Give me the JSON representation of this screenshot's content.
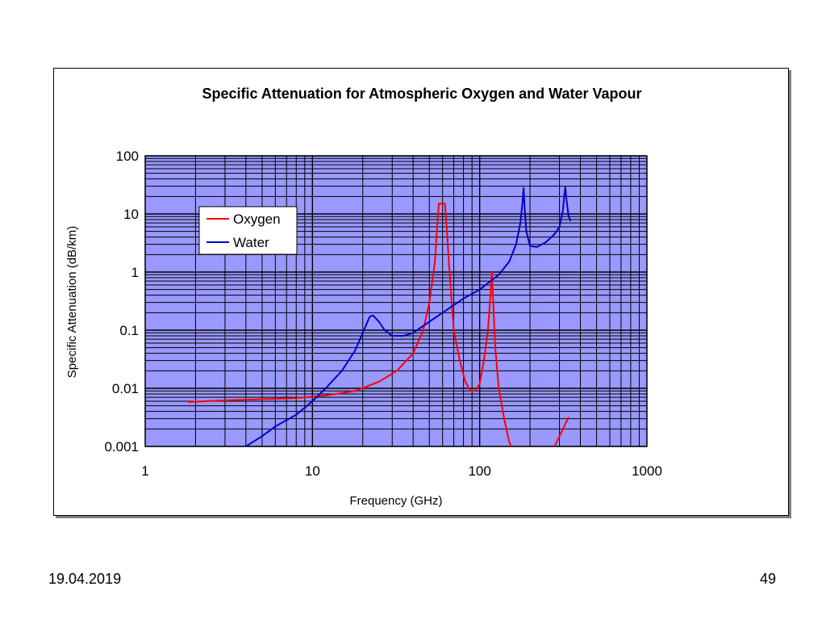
{
  "slide": {
    "date": "19.04.2019",
    "page_number": "49"
  },
  "chart_data": {
    "type": "line",
    "title": "Specific Attenuation for Atmospheric Oxygen and Water Vapour",
    "xlabel": "Frequency (GHz)",
    "ylabel": "Specific Attenuation (dB/km)",
    "x_scale": "log",
    "y_scale": "log",
    "xlim": [
      1,
      1000
    ],
    "ylim": [
      0.001,
      100
    ],
    "x_ticks": [
      "1",
      "10",
      "100",
      "1000"
    ],
    "y_ticks": [
      "0.001",
      "0.01",
      "0.1",
      "1",
      "10",
      "100"
    ],
    "grid": true,
    "plot_background": "#9999ff",
    "legend_position": "upper-left",
    "series": [
      {
        "name": "Oxygen",
        "color": "#ff0000",
        "segments": [
          [
            [
              1.8,
              0.0058
            ],
            [
              3,
              0.0062
            ],
            [
              5,
              0.0065
            ],
            [
              8,
              0.0068
            ],
            [
              12,
              0.0075
            ],
            [
              18,
              0.009
            ],
            [
              25,
              0.013
            ],
            [
              32,
              0.02
            ],
            [
              40,
              0.04
            ],
            [
              46,
              0.1
            ],
            [
              50,
              0.3
            ],
            [
              54,
              1.5
            ],
            [
              56,
              8
            ],
            [
              57,
              15
            ],
            [
              62,
              15
            ],
            [
              63,
              8
            ],
            [
              66,
              1
            ],
            [
              70,
              0.1
            ],
            [
              76,
              0.03
            ],
            [
              82,
              0.013
            ],
            [
              88,
              0.009
            ],
            [
              94,
              0.009
            ],
            [
              100,
              0.012
            ],
            [
              106,
              0.03
            ],
            [
              112,
              0.1
            ],
            [
              116,
              0.4
            ],
            [
              118,
              1
            ],
            [
              120,
              0.4
            ],
            [
              124,
              0.05
            ],
            [
              130,
              0.01
            ],
            [
              140,
              0.003
            ],
            [
              150,
              0.0012
            ],
            [
              155,
              0.001
            ]
          ],
          [
            [
              280,
              0.001
            ],
            [
              300,
              0.0015
            ],
            [
              320,
              0.0022
            ],
            [
              340,
              0.0032
            ]
          ]
        ]
      },
      {
        "name": "Water",
        "color": "#0000cc",
        "segments": [
          [
            [
              4,
              0.001
            ],
            [
              5,
              0.0015
            ],
            [
              6,
              0.0022
            ],
            [
              8,
              0.0035
            ],
            [
              10,
              0.006
            ],
            [
              12,
              0.01
            ],
            [
              15,
              0.02
            ],
            [
              18,
              0.045
            ],
            [
              20,
              0.09
            ],
            [
              22,
              0.17
            ],
            [
              23,
              0.18
            ],
            [
              25,
              0.14
            ],
            [
              27,
              0.1
            ],
            [
              30,
              0.08
            ],
            [
              35,
              0.08
            ],
            [
              40,
              0.09
            ],
            [
              50,
              0.14
            ],
            [
              60,
              0.2
            ],
            [
              80,
              0.35
            ],
            [
              100,
              0.5
            ],
            [
              130,
              0.9
            ],
            [
              150,
              1.5
            ],
            [
              165,
              3
            ],
            [
              175,
              7
            ],
            [
              180,
              15
            ],
            [
              183,
              28
            ],
            [
              186,
              12
            ],
            [
              190,
              5
            ],
            [
              200,
              2.8
            ],
            [
              220,
              2.7
            ],
            [
              250,
              3.3
            ],
            [
              280,
              4.5
            ],
            [
              300,
              6
            ],
            [
              315,
              12
            ],
            [
              320,
              20
            ],
            [
              325,
              29
            ],
            [
              330,
              18
            ],
            [
              340,
              9
            ],
            [
              350,
              7.5
            ]
          ]
        ]
      }
    ]
  }
}
